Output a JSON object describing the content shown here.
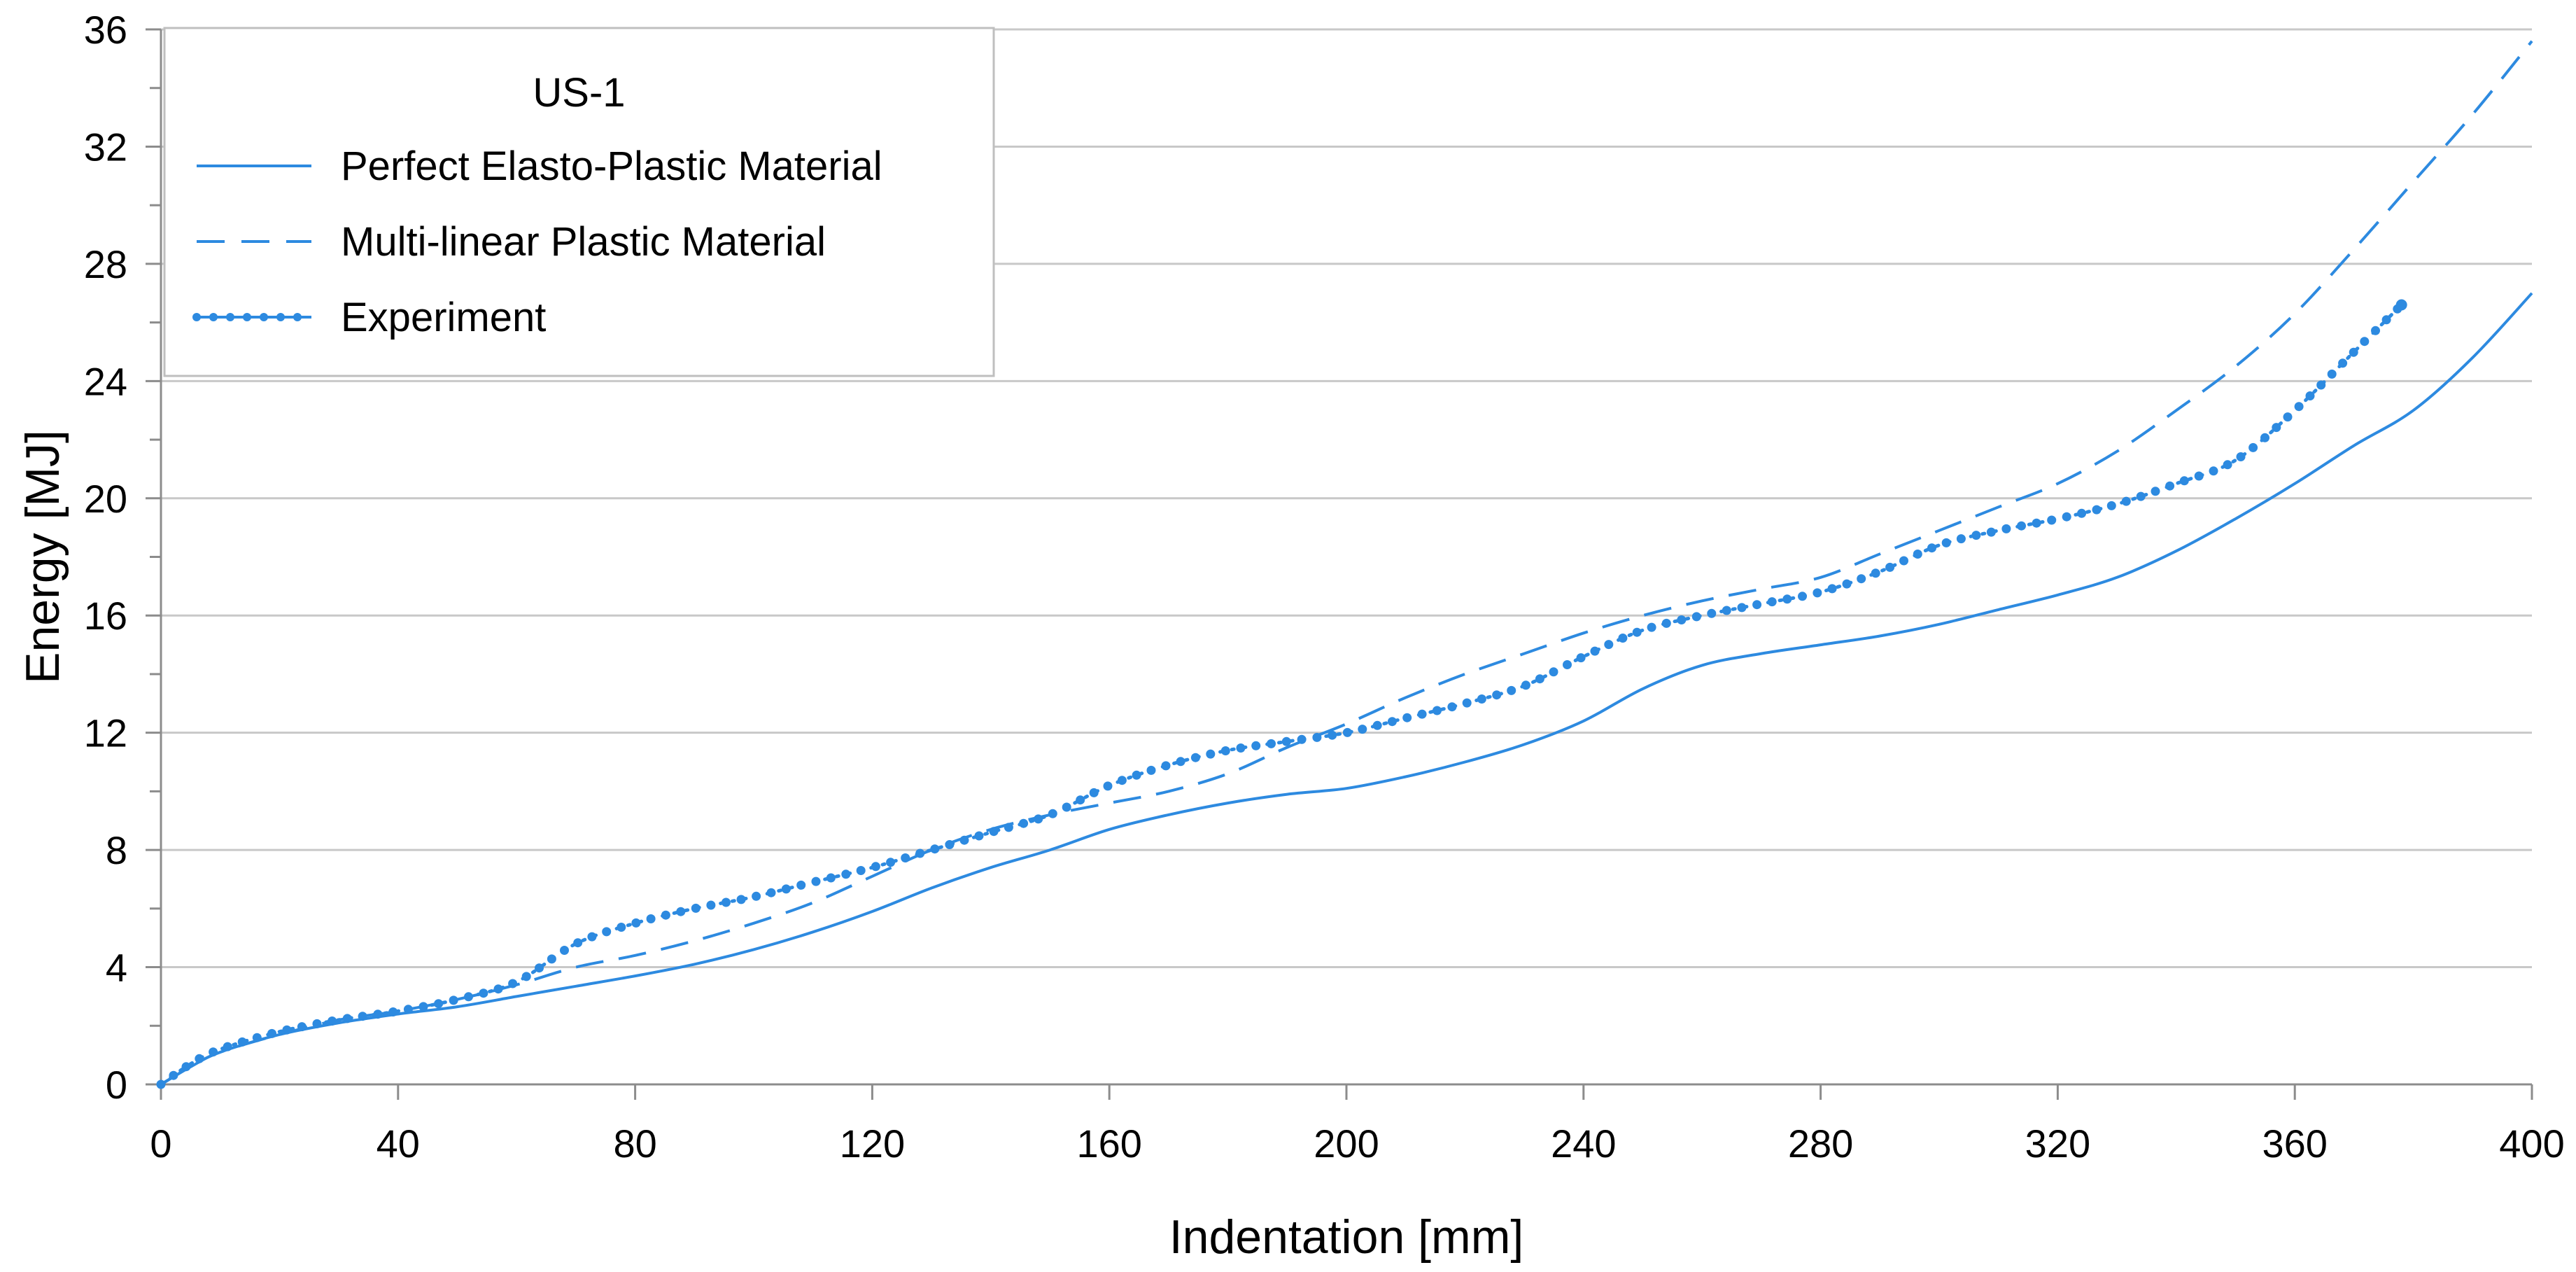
{
  "chart_data": {
    "type": "line",
    "title": "",
    "xlabel": "Indentation [mm]",
    "ylabel": "Energy [MJ]",
    "xlim": [
      0,
      400
    ],
    "ylim": [
      0,
      36
    ],
    "xticks": [
      0,
      40,
      80,
      120,
      160,
      200,
      240,
      280,
      320,
      360,
      400
    ],
    "yticks": [
      0,
      4,
      8,
      12,
      16,
      20,
      24,
      28,
      32,
      36
    ],
    "grid": "horizontal",
    "legend": {
      "title": "US-1",
      "position": "top-left"
    },
    "color": "#2d8ae0",
    "series": [
      {
        "name": "Perfect Elasto-Plastic Material",
        "style": "solid",
        "x": [
          0,
          5,
          10,
          20,
          30,
          40,
          50,
          60,
          70,
          80,
          90,
          100,
          110,
          120,
          130,
          140,
          150,
          160,
          170,
          180,
          190,
          200,
          210,
          220,
          230,
          240,
          250,
          260,
          270,
          280,
          290,
          300,
          310,
          320,
          330,
          340,
          350,
          360,
          370,
          380,
          390,
          400
        ],
        "y": [
          0,
          0.6,
          1.1,
          1.7,
          2.1,
          2.4,
          2.65,
          3.0,
          3.35,
          3.7,
          4.1,
          4.6,
          5.2,
          5.9,
          6.7,
          7.4,
          8.0,
          8.7,
          9.2,
          9.6,
          9.9,
          10.1,
          10.5,
          11.0,
          11.6,
          12.4,
          13.5,
          14.3,
          14.7,
          15.0,
          15.3,
          15.7,
          16.2,
          16.7,
          17.3,
          18.2,
          19.3,
          20.5,
          21.8,
          23.0,
          24.8,
          27.0
        ]
      },
      {
        "name": "Multi-linear Plastic Material",
        "style": "dashed",
        "x": [
          0,
          5,
          10,
          20,
          30,
          40,
          50,
          60,
          70,
          80,
          90,
          100,
          110,
          120,
          130,
          140,
          150,
          160,
          170,
          180,
          190,
          200,
          210,
          220,
          230,
          240,
          250,
          260,
          270,
          280,
          290,
          300,
          310,
          320,
          330,
          340,
          350,
          360,
          370,
          380,
          390,
          400
        ],
        "y": [
          0,
          0.6,
          1.1,
          1.7,
          2.2,
          2.5,
          2.9,
          3.4,
          4.0,
          4.4,
          4.9,
          5.5,
          6.2,
          7.1,
          8.0,
          8.7,
          9.2,
          9.6,
          10.0,
          10.6,
          11.5,
          12.3,
          13.2,
          14.0,
          14.7,
          15.4,
          16.0,
          16.5,
          16.9,
          17.3,
          18.1,
          18.9,
          19.7,
          20.5,
          21.6,
          23.0,
          24.5,
          26.3,
          28.5,
          30.8,
          33.1,
          35.6
        ]
      },
      {
        "name": "Experiment",
        "style": "dotted-markers",
        "x": [
          0,
          5,
          10,
          20,
          30,
          40,
          50,
          60,
          70,
          80,
          90,
          100,
          110,
          120,
          130,
          140,
          150,
          160,
          170,
          180,
          190,
          200,
          210,
          220,
          230,
          240,
          250,
          260,
          270,
          280,
          290,
          300,
          310,
          320,
          330,
          340,
          350,
          360,
          370,
          378
        ],
        "y": [
          0,
          0.7,
          1.2,
          1.8,
          2.2,
          2.5,
          2.9,
          3.5,
          4.8,
          5.5,
          6.0,
          6.4,
          6.9,
          7.4,
          8.0,
          8.6,
          9.2,
          10.2,
          10.9,
          11.4,
          11.7,
          12.0,
          12.5,
          13.0,
          13.6,
          14.6,
          15.5,
          16.0,
          16.4,
          16.8,
          17.5,
          18.4,
          18.9,
          19.3,
          19.8,
          20.5,
          21.3,
          23.0,
          25.0,
          26.6
        ]
      }
    ]
  }
}
